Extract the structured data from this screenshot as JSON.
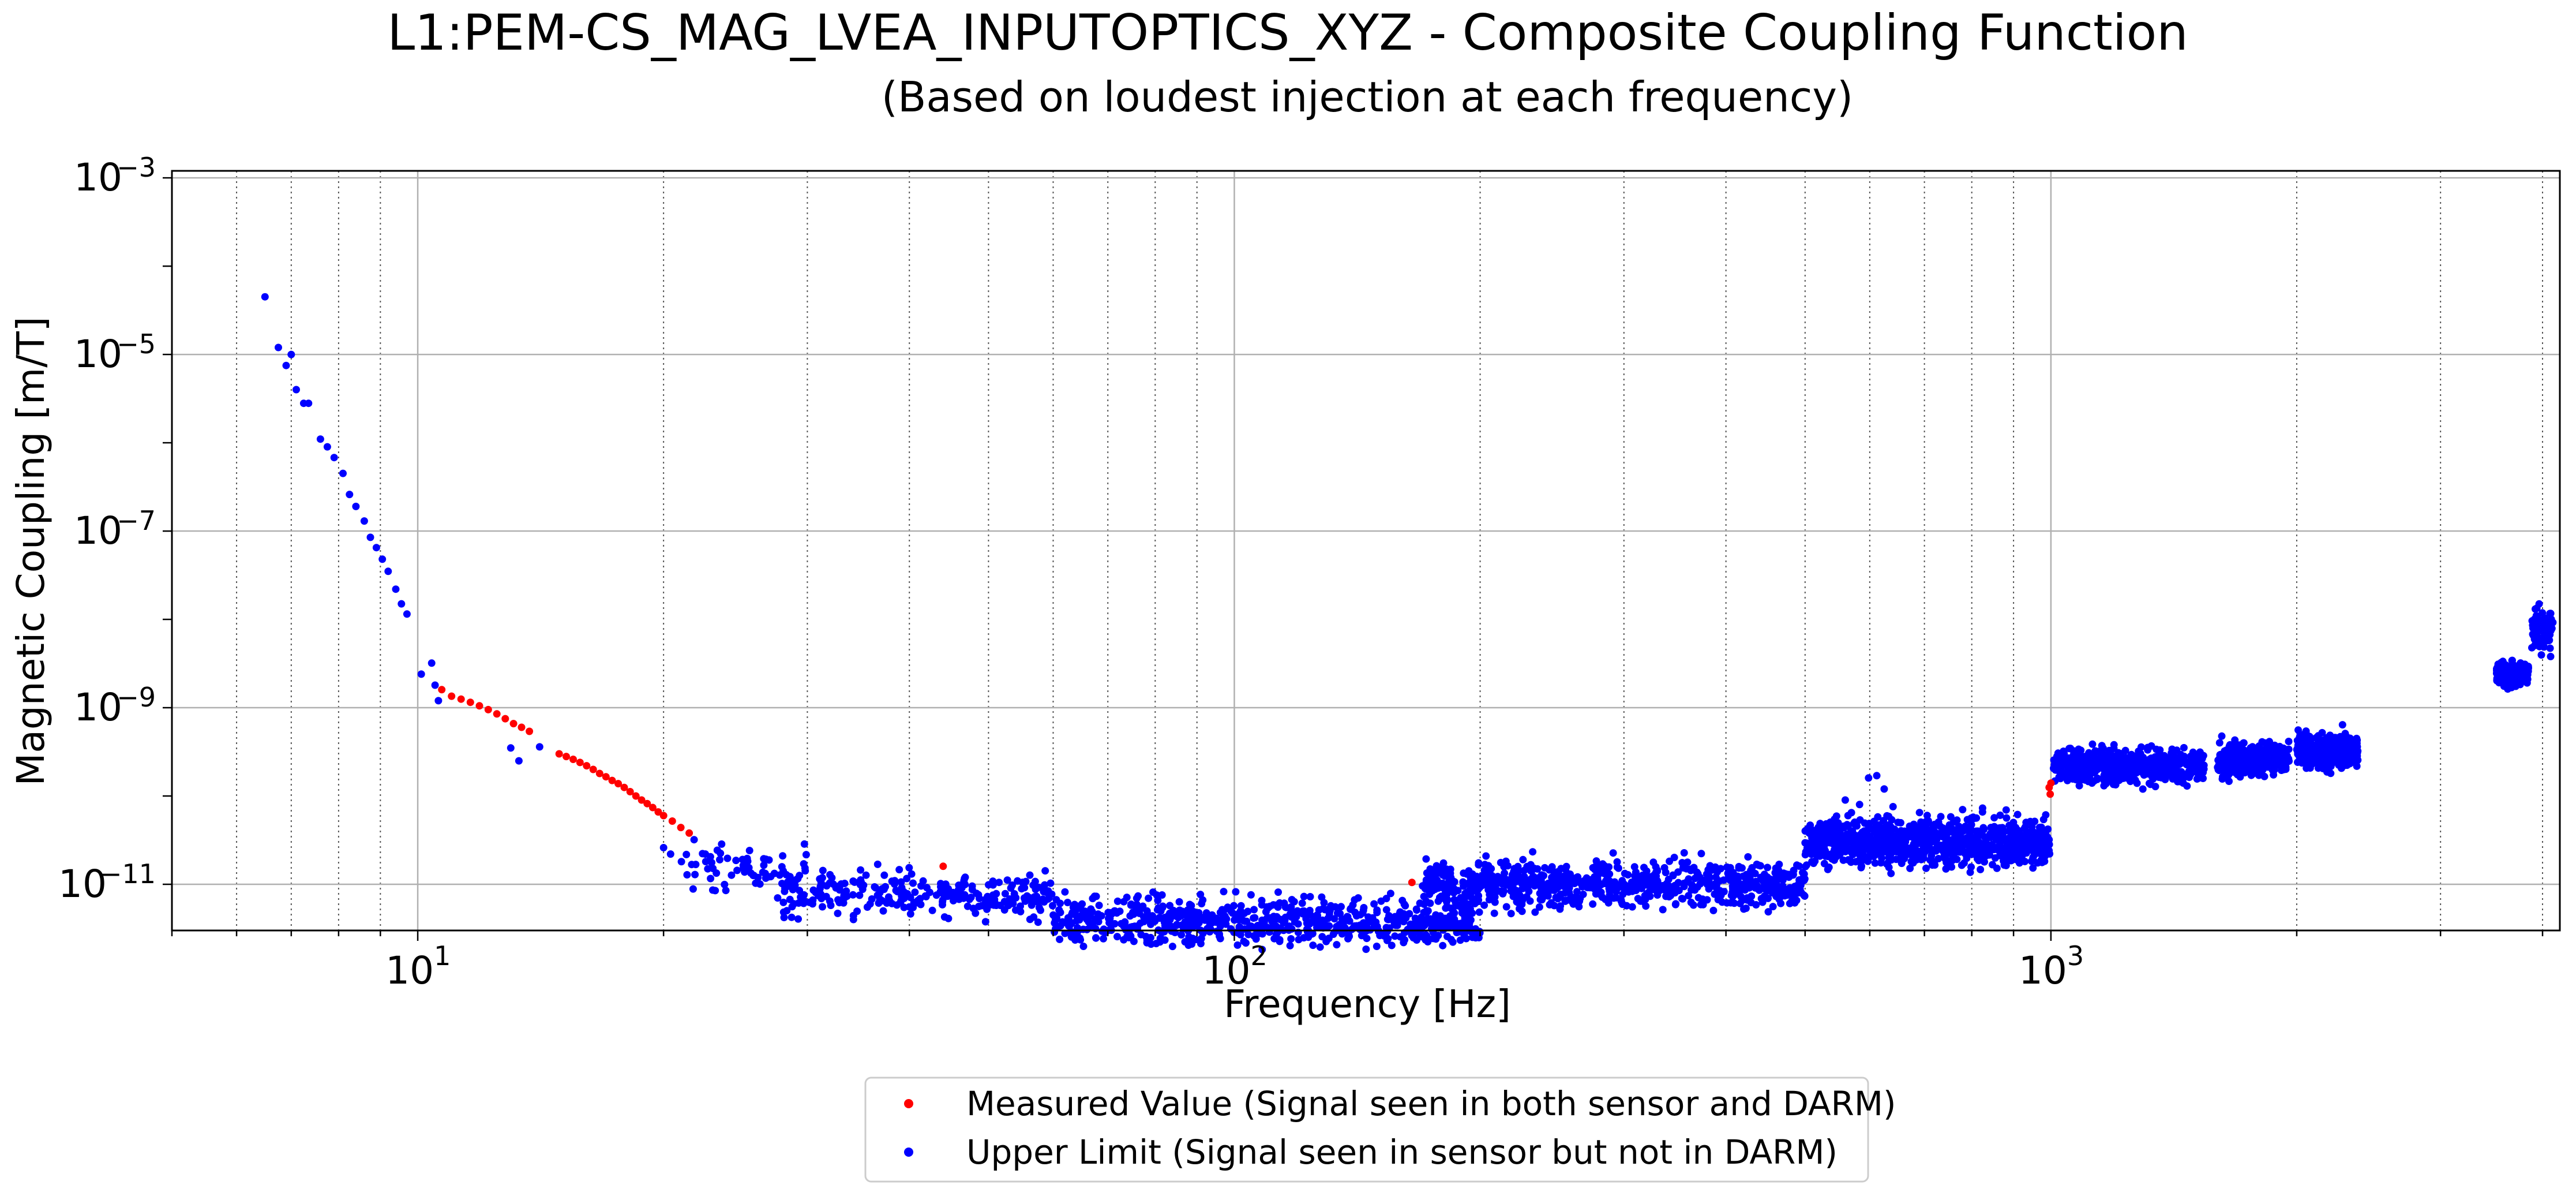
{
  "chart_data": {
    "type": "scatter",
    "title": "L1:PEM-CS_MAG_LVEA_INPUTOPTICS_XYZ - Composite Coupling Function",
    "subtitle": "(Based on loudest injection at each frequency)",
    "xlabel": "Frequency [Hz]",
    "ylabel": "Magnetic Coupling [m/T]",
    "xscale": "log",
    "yscale": "log",
    "xlim": [
      5,
      4200
    ],
    "ylim": [
      3e-12,
      0.0012
    ],
    "x_ticks": [
      {
        "value": 10,
        "base": "10",
        "exp": "1"
      },
      {
        "value": 100,
        "base": "10",
        "exp": "2"
      },
      {
        "value": 1000,
        "base": "10",
        "exp": "3"
      }
    ],
    "y_ticks": [
      {
        "value": 0.001,
        "base": "10",
        "exp": "−3"
      },
      {
        "value": 1e-05,
        "base": "10",
        "exp": "−5"
      },
      {
        "value": 1e-07,
        "base": "10",
        "exp": "−7"
      },
      {
        "value": 1e-09,
        "base": "10",
        "exp": "−9"
      },
      {
        "value": 1e-11,
        "base": "10",
        "exp": "−11"
      }
    ],
    "grid": "major and minor (x)",
    "legend_position": "bottom-center, below plot",
    "series": [
      {
        "name": "Measured Value (Signal seen in both sensor and DARM)",
        "color": "#ff0000",
        "marker": "dot",
        "points": [
          [
            10.7,
            1.6e-09
          ],
          [
            11.0,
            1.35e-09
          ],
          [
            11.3,
            1.25e-09
          ],
          [
            11.6,
            1.15e-09
          ],
          [
            11.9,
            1.05e-09
          ],
          [
            12.2,
            9.5e-10
          ],
          [
            12.5,
            8.5e-10
          ],
          [
            12.8,
            7.5e-10
          ],
          [
            13.1,
            6.6e-10
          ],
          [
            13.4,
            6e-10
          ],
          [
            13.7,
            5.4e-10
          ],
          [
            14.9,
            3e-10
          ],
          [
            15.2,
            2.8e-10
          ],
          [
            15.5,
            2.6e-10
          ],
          [
            15.8,
            2.4e-10
          ],
          [
            16.1,
            2.2e-10
          ],
          [
            16.4,
            2e-10
          ],
          [
            16.7,
            1.8e-10
          ],
          [
            17.0,
            1.65e-10
          ],
          [
            17.3,
            1.5e-10
          ],
          [
            17.6,
            1.38e-10
          ],
          [
            17.9,
            1.25e-10
          ],
          [
            18.2,
            1.12e-10
          ],
          [
            18.5,
            1e-10
          ],
          [
            18.8,
            9e-11
          ],
          [
            19.1,
            8.2e-11
          ],
          [
            19.4,
            7.4e-11
          ],
          [
            19.7,
            6.6e-11
          ],
          [
            20.0,
            6e-11
          ],
          [
            20.5,
            5.2e-11
          ],
          [
            21.0,
            4.4e-11
          ],
          [
            21.5,
            3.8e-11
          ],
          [
            44.0,
            1.6e-11
          ],
          [
            165,
            1.05e-11
          ],
          [
            995,
            1.25e-10
          ],
          [
            998,
            1.05e-10
          ],
          [
            1000,
            1.4e-10
          ]
        ]
      },
      {
        "name": "Upper Limit (Signal seen in sensor but not in DARM)",
        "color": "#0000ff",
        "marker": "dot",
        "points": [
          [
            6.5,
            4.5e-05
          ],
          [
            6.75,
            1.2e-05
          ],
          [
            6.9,
            7.5e-06
          ],
          [
            7.0,
            1e-05
          ],
          [
            7.1,
            4e-06
          ],
          [
            7.25,
            2.8e-06
          ],
          [
            7.35,
            2.8e-06
          ],
          [
            7.6,
            1.1e-06
          ],
          [
            7.75,
            9e-07
          ],
          [
            7.9,
            6.8e-07
          ],
          [
            8.1,
            4.5e-07
          ],
          [
            8.25,
            2.6e-07
          ],
          [
            8.4,
            1.9e-07
          ],
          [
            8.6,
            1.3e-07
          ],
          [
            8.75,
            8.5e-08
          ],
          [
            8.9,
            6.5e-08
          ],
          [
            9.05,
            4.8e-08
          ],
          [
            9.2,
            3.5e-08
          ],
          [
            9.4,
            2.2e-08
          ],
          [
            9.55,
            1.5e-08
          ],
          [
            9.7,
            1.15e-08
          ],
          [
            10.1,
            2.4e-09
          ],
          [
            10.4,
            3.2e-09
          ],
          [
            10.5,
            1.8e-09
          ],
          [
            10.6,
            1.2e-09
          ],
          [
            13.0,
            3.5e-10
          ],
          [
            13.3,
            2.5e-10
          ],
          [
            14.1,
            3.6e-10
          ],
          [
            21.8,
            3.2e-11
          ],
          [
            22.5,
            2.2e-11
          ],
          [
            20.0,
            2.6e-11
          ],
          [
            20.4,
            2.2e-11
          ]
        ],
        "bands": [
          {
            "x_from": 21,
            "x_to": 30,
            "y_center": 1.4e-11,
            "y_spread": 0.3,
            "count": 70
          },
          {
            "x_from": 28,
            "x_to": 60,
            "y_center": 7.8e-12,
            "y_spread": 0.28,
            "count": 260
          },
          {
            "x_from": 60,
            "x_to": 200,
            "y_center": 3.8e-12,
            "y_spread": 0.3,
            "count": 700
          },
          {
            "x_from": 170,
            "x_to": 500,
            "y_center": 1e-11,
            "y_spread": 0.28,
            "count": 800
          },
          {
            "x_from": 500,
            "x_to": 1000,
            "y_center": 3e-11,
            "y_spread": 0.3,
            "count": 900
          },
          {
            "x_from": 1005,
            "x_to": 1540,
            "y_center": 2.2e-10,
            "y_spread": 0.22,
            "count": 500
          },
          {
            "x_from": 1600,
            "x_to": 1960,
            "y_center": 2.6e-10,
            "y_spread": 0.2,
            "count": 350
          },
          {
            "x_from": 2000,
            "x_to": 2380,
            "y_center": 3.2e-10,
            "y_spread": 0.22,
            "count": 300
          },
          {
            "x_from": 3510,
            "x_to": 3850,
            "y_center": 2.4e-09,
            "y_spread": 0.15,
            "count": 180
          },
          {
            "x_from": 3880,
            "x_to": 4120,
            "y_center": 8e-09,
            "y_spread": 0.3,
            "count": 80
          }
        ],
        "extra_points": [
          [
            598,
            1.6e-10
          ],
          [
            612,
            1.7e-10
          ],
          [
            625,
            1.2e-10
          ],
          [
            583,
            8e-11
          ],
          [
            560,
            9e-11
          ]
        ]
      }
    ]
  }
}
